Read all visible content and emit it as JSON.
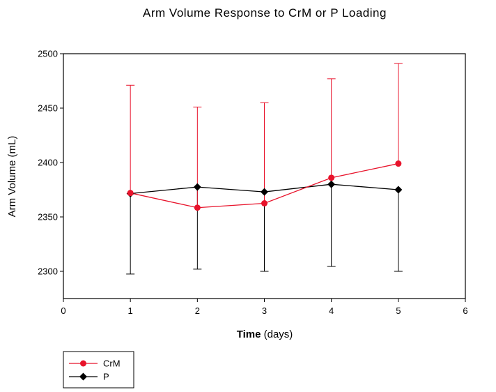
{
  "chart_data": {
    "type": "line",
    "title": "Arm Volume Response to CrM or P Loading",
    "xlabel_bold": "Time",
    "xlabel_rest": " (days)",
    "ylabel": "Arm Volume (mL)",
    "xlim": [
      0,
      6
    ],
    "ylim": [
      2275,
      2500
    ],
    "xticks": [
      0,
      1,
      2,
      3,
      4,
      5,
      6
    ],
    "yticks": [
      2300,
      2350,
      2400,
      2450,
      2500
    ],
    "grid": false,
    "legend_position": "bottom-left",
    "x": [
      1,
      2,
      3,
      4,
      5
    ],
    "series": [
      {
        "name": "CrM",
        "color": "#e8132b",
        "marker": "circle",
        "error_direction": "up",
        "values": [
          2372,
          2358.5,
          2362.5,
          2386,
          2399
        ],
        "error_upper": [
          2471,
          2451,
          2455,
          2477,
          2491
        ]
      },
      {
        "name": "P",
        "color": "#000000",
        "marker": "diamond",
        "error_direction": "down",
        "values": [
          2371.5,
          2377.5,
          2373,
          2380,
          2375
        ],
        "error_lower": [
          2297.5,
          2302,
          2300,
          2304.5,
          2300
        ]
      }
    ]
  }
}
